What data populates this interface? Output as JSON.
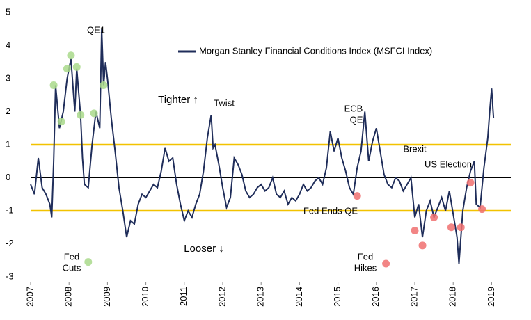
{
  "chart_data": {
    "type": "line",
    "series": [
      {
        "name": "Morgan Stanley Financial Conditions Index (MSFCI Index)",
        "color": "#1f2d5a",
        "x": [
          2007.0,
          2007.1,
          2007.2,
          2007.3,
          2007.4,
          2007.5,
          2007.55,
          2007.6,
          2007.65,
          2007.75,
          2007.85,
          2007.95,
          2008.05,
          2008.15,
          2008.2,
          2008.3,
          2008.35,
          2008.4,
          2008.5,
          2008.6,
          2008.7,
          2008.8,
          2008.85,
          2008.9,
          2008.95,
          2009.0,
          2009.1,
          2009.2,
          2009.3,
          2009.4,
          2009.5,
          2009.6,
          2009.7,
          2009.8,
          2009.9,
          2010.0,
          2010.1,
          2010.2,
          2010.3,
          2010.4,
          2010.5,
          2010.6,
          2010.7,
          2010.8,
          2010.9,
          2011.0,
          2011.1,
          2011.2,
          2011.3,
          2011.4,
          2011.5,
          2011.6,
          2011.7,
          2011.75,
          2011.8,
          2011.9,
          2012.0,
          2012.1,
          2012.2,
          2012.3,
          2012.4,
          2012.5,
          2012.6,
          2012.7,
          2012.8,
          2012.9,
          2013.0,
          2013.1,
          2013.2,
          2013.3,
          2013.4,
          2013.5,
          2013.6,
          2013.7,
          2013.8,
          2013.9,
          2014.0,
          2014.1,
          2014.2,
          2014.3,
          2014.4,
          2014.5,
          2014.6,
          2014.7,
          2014.8,
          2014.9,
          2015.0,
          2015.1,
          2015.2,
          2015.3,
          2015.4,
          2015.5,
          2015.6,
          2015.7,
          2015.8,
          2015.9,
          2016.0,
          2016.1,
          2016.2,
          2016.3,
          2016.4,
          2016.5,
          2016.6,
          2016.7,
          2016.8,
          2016.9,
          2017.0,
          2017.1,
          2017.2,
          2017.3,
          2017.4,
          2017.5,
          2017.6,
          2017.7,
          2017.8,
          2017.9,
          2018.0,
          2018.1,
          2018.15,
          2018.25,
          2018.35,
          2018.45,
          2018.55,
          2018.6,
          2018.7,
          2018.8,
          2018.9,
          2018.95,
          2019.0,
          2019.05
        ],
        "values": [
          -0.2,
          -0.5,
          0.6,
          -0.3,
          -0.5,
          -0.8,
          -1.2,
          0.5,
          2.8,
          1.5,
          2.0,
          3.0,
          3.6,
          2.0,
          3.3,
          1.9,
          0.6,
          -0.2,
          -0.3,
          1.0,
          2.0,
          1.5,
          4.5,
          2.8,
          3.5,
          3.0,
          1.8,
          0.8,
          -0.3,
          -1.0,
          -1.8,
          -1.3,
          -1.4,
          -0.8,
          -0.5,
          -0.6,
          -0.4,
          -0.2,
          -0.3,
          0.2,
          0.9,
          0.5,
          0.6,
          -0.2,
          -0.8,
          -1.3,
          -1.0,
          -1.2,
          -0.8,
          -0.5,
          0.2,
          1.2,
          1.9,
          0.9,
          1.0,
          0.4,
          -0.3,
          -0.9,
          -0.6,
          0.6,
          0.4,
          0.1,
          -0.4,
          -0.6,
          -0.5,
          -0.3,
          -0.2,
          -0.4,
          -0.3,
          0.0,
          -0.5,
          -0.6,
          -0.4,
          -0.8,
          -0.6,
          -0.7,
          -0.5,
          -0.2,
          -0.4,
          -0.3,
          -0.1,
          0.0,
          -0.2,
          0.3,
          1.4,
          0.8,
          1.2,
          0.6,
          0.2,
          -0.3,
          -0.5,
          0.3,
          0.8,
          2.0,
          0.5,
          1.1,
          1.5,
          0.8,
          0.1,
          -0.2,
          -0.3,
          0.0,
          -0.1,
          -0.4,
          -0.2,
          0.0,
          -1.2,
          -0.8,
          -1.8,
          -1.0,
          -0.7,
          -1.2,
          -0.9,
          -0.6,
          -1.0,
          -0.4,
          -1.1,
          -1.8,
          -2.6,
          -1.0,
          -0.3,
          0.2,
          0.5,
          -0.8,
          -0.9,
          0.3,
          1.2,
          2.0,
          2.7,
          1.8
        ]
      }
    ],
    "fed_cuts": {
      "color": "#a9d98b",
      "x": [
        2007.6,
        2007.8,
        2007.95,
        2008.05,
        2008.2,
        2008.3,
        2008.65,
        2008.9,
        2008.5
      ],
      "y": [
        2.8,
        1.7,
        3.3,
        3.7,
        3.35,
        1.9,
        1.95,
        2.8,
        -2.55
      ]
    },
    "fed_hikes": {
      "color": "#f07070",
      "x": [
        2015.5,
        2017.0,
        2017.2,
        2017.5,
        2017.95,
        2018.2,
        2018.45,
        2018.75,
        2016.25
      ],
      "y": [
        -0.55,
        -1.6,
        -2.05,
        -1.2,
        -1.5,
        -1.5,
        -0.15,
        -0.95,
        -2.6
      ]
    },
    "hlines": [
      {
        "value": 1,
        "color": "#f2c200"
      },
      {
        "value": -1,
        "color": "#f2c200"
      },
      {
        "value": 0,
        "color": "#000000"
      }
    ],
    "annotations": [
      "QE1",
      "Twist",
      "ECB",
      "QE",
      "Brexit",
      "US Election",
      "Fed Ends QE",
      "Tighter ↑",
      "Looser ↓",
      "Fed",
      "Cuts",
      "Fed",
      "Hikes"
    ],
    "xlim": [
      2007,
      2019.5
    ],
    "xticks": [
      2007,
      2008,
      2009,
      2010,
      2011,
      2012,
      2013,
      2014,
      2015,
      2016,
      2017,
      2018,
      2019
    ],
    "ylim": [
      -3,
      5
    ],
    "yticks": [
      -3,
      -2,
      -1,
      0,
      1,
      2,
      3,
      4,
      5
    ]
  }
}
